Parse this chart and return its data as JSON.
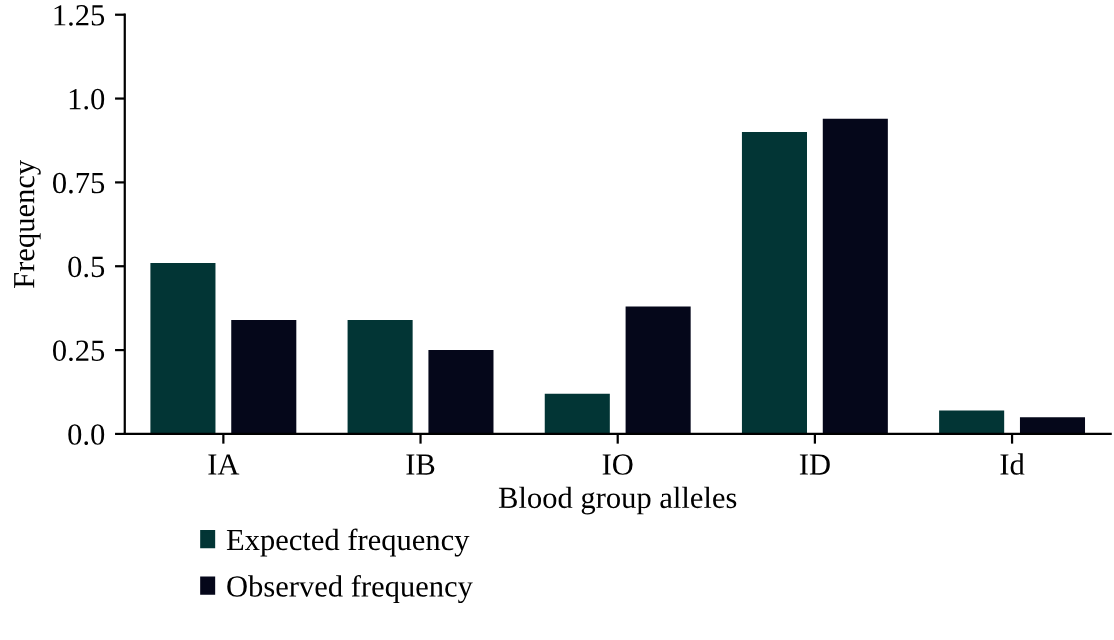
{
  "chart_data": {
    "type": "bar",
    "xlabel": "Blood group alleles",
    "ylabel": "Frequency",
    "categories": [
      "IA",
      "IB",
      "IO",
      "ID",
      "Id"
    ],
    "series": [
      {
        "name": "Expected frequency",
        "color": "#023535",
        "values": [
          0.51,
          0.34,
          0.12,
          0.9,
          0.07
        ]
      },
      {
        "name": "Observed frequency",
        "color": "#05071a",
        "values": [
          0.34,
          0.25,
          0.38,
          0.94,
          0.05
        ]
      }
    ],
    "ylim": [
      0,
      1.25
    ],
    "yticks": [
      {
        "value": 0,
        "label": "0.0"
      },
      0.25,
      0.5,
      0.75,
      {
        "value": 1,
        "label": "1.0"
      },
      1.25
    ],
    "grid": false,
    "legend": "bottom left"
  }
}
